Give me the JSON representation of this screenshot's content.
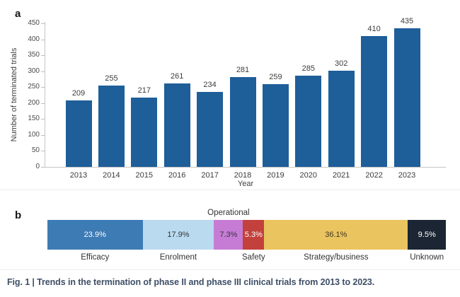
{
  "panels": {
    "a_label": "a",
    "b_label": "b"
  },
  "caption": {
    "text": "Fig. 1 | Trends in the termination of phase II and phase III clinical trials from 2013 to 2023."
  },
  "chart_data": [
    {
      "type": "bar",
      "panel": "a",
      "title": "",
      "categories": [
        "2013",
        "2014",
        "2015",
        "2016",
        "2017",
        "2018",
        "2019",
        "2020",
        "2021",
        "2022",
        "2023"
      ],
      "values": [
        209,
        255,
        217,
        261,
        234,
        281,
        259,
        285,
        302,
        410,
        435
      ],
      "xlabel": "Year",
      "ylabel": "Number of terminated trials",
      "ylim": [
        0,
        450
      ],
      "yticks": [
        0,
        50,
        100,
        150,
        200,
        250,
        300,
        350,
        400,
        450
      ],
      "grid": false,
      "legend": "none",
      "bar_color": "#1e5e99",
      "value_labels_shown": true
    },
    {
      "type": "bar",
      "panel": "b",
      "subtype": "stacked-horizontal-percentage",
      "title": "",
      "segments": [
        {
          "label": "Efficacy",
          "value_pct": 23.9,
          "color": "#3d7bb5",
          "text_color": "#ffffff",
          "label_position": "below"
        },
        {
          "label": "Enrolment",
          "value_pct": 17.9,
          "color": "#badaf0",
          "text_color": "#333333",
          "label_position": "below"
        },
        {
          "label": "Operational",
          "value_pct": 7.3,
          "color": "#c67cd4",
          "text_color": "#3a3142",
          "label_position": "above"
        },
        {
          "label": "Safety",
          "value_pct": 5.3,
          "color": "#c2413c",
          "text_color": "#ffffff",
          "label_position": "below"
        },
        {
          "label": "Strategy/business",
          "value_pct": 36.1,
          "color": "#eac45f",
          "text_color": "#3c3520",
          "label_position": "below"
        },
        {
          "label": "Unknown",
          "value_pct": 9.5,
          "color": "#1b2533",
          "text_color": "#ffffff",
          "label_position": "below"
        }
      ]
    }
  ]
}
